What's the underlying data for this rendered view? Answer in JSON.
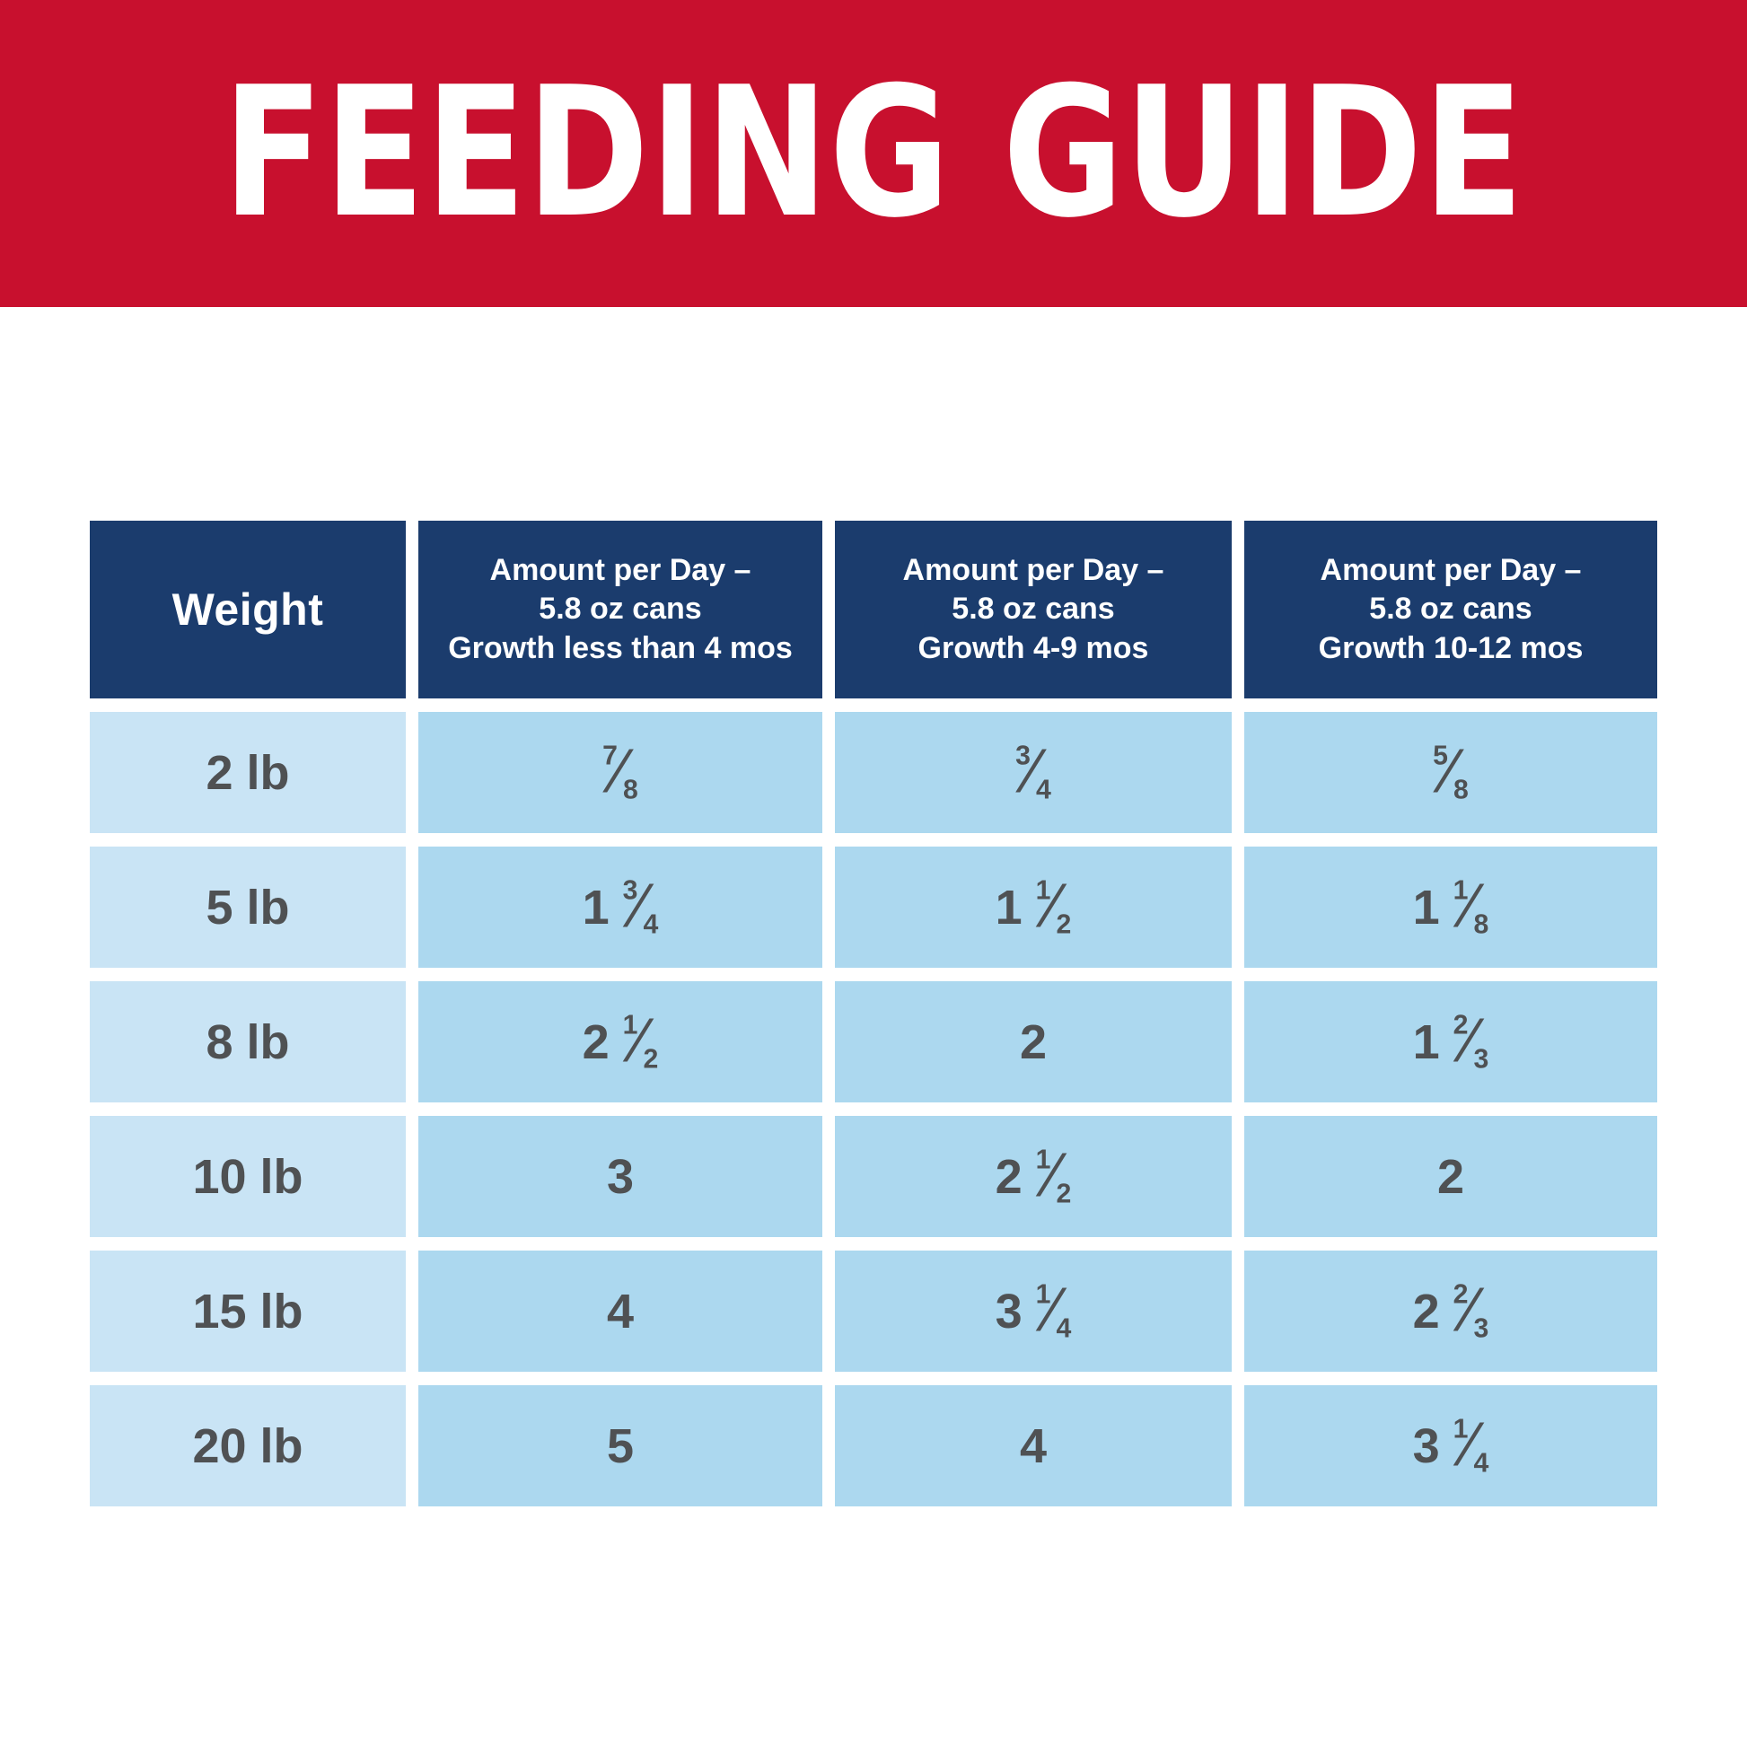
{
  "banner": {
    "title": "FEEDING GUIDE",
    "bg_color": "#C8102E",
    "text_color": "#FFFFFF"
  },
  "colors": {
    "header_bg": "#1B3C6D",
    "header_text": "#FFFFFF",
    "weight_col_bg": "#C9E4F5",
    "amount_col_bg": "#ACD8EF",
    "cell_text": "#4F5153",
    "page_bg": "#FFFFFF"
  },
  "chart_data": {
    "type": "table",
    "title": "FEEDING GUIDE",
    "columns": [
      "Weight",
      "Amount per Day –\n5.8 oz cans\nGrowth less than 4 mos",
      "Amount per Day –\n5.8 oz cans\nGrowth 4-9 mos",
      "Amount per Day –\n5.8 oz cans\nGrowth 10-12 mos"
    ],
    "rows": [
      [
        "2 lb",
        "7/8",
        "3/4",
        "5/8"
      ],
      [
        "5 lb",
        "1 3/4",
        "1 1/2",
        "1 1/8"
      ],
      [
        "8 lb",
        "2 1/2",
        "2",
        "1 2/3"
      ],
      [
        "10 lb",
        "3",
        "2 1/2",
        "2"
      ],
      [
        "15 lb",
        "4",
        "3 1/4",
        "2 2/3"
      ],
      [
        "20 lb",
        "5",
        "4",
        "3 1/4"
      ]
    ]
  }
}
